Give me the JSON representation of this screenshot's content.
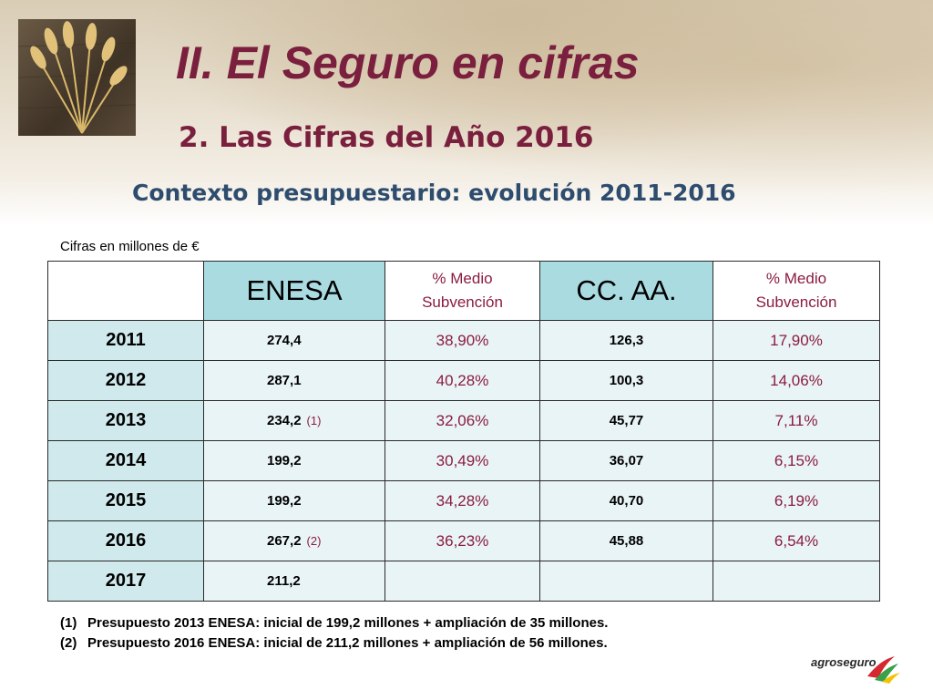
{
  "header": {
    "title": "II. El Seguro en cifras",
    "subtitle": "2.  Las Cifras del Año 2016",
    "context_title": "Contexto presupuestario: evolución 2011-2016"
  },
  "units_note": "Cifras en millones de €",
  "table": {
    "columns": [
      "",
      "ENESA",
      "% Medio Subvención",
      "CC. AA.",
      "% Medio Subvención"
    ],
    "col_pct_line1": "% Medio",
    "col_pct_line2": "Subvención",
    "rows": [
      {
        "year": "2011",
        "enesa": "274,4",
        "enesa_ref": "",
        "enesa_pct": "38,90%",
        "ccaa": "126,3",
        "ccaa_pct": "17,90%"
      },
      {
        "year": "2012",
        "enesa": "287,1",
        "enesa_ref": "",
        "enesa_pct": "40,28%",
        "ccaa": "100,3",
        "ccaa_pct": "14,06%"
      },
      {
        "year": "2013",
        "enesa": "234,2",
        "enesa_ref": "(1)",
        "enesa_pct": "32,06%",
        "ccaa": "45,77",
        "ccaa_pct": "7,11%"
      },
      {
        "year": "2014",
        "enesa": "199,2",
        "enesa_ref": "",
        "enesa_pct": "30,49%",
        "ccaa": "36,07",
        "ccaa_pct": "6,15%"
      },
      {
        "year": "2015",
        "enesa": "199,2",
        "enesa_ref": "",
        "enesa_pct": "34,28%",
        "ccaa": "40,70",
        "ccaa_pct": "6,19%"
      },
      {
        "year": "2016",
        "enesa": "267,2",
        "enesa_ref": "(2)",
        "enesa_pct": "36,23%",
        "ccaa": "45,88",
        "ccaa_pct": "6,54%"
      },
      {
        "year": "2017",
        "enesa": "211,2",
        "enesa_ref": "",
        "enesa_pct": "",
        "ccaa": "",
        "ccaa_pct": ""
      }
    ]
  },
  "footnotes": [
    {
      "num": "(1)",
      "text": "Presupuesto 2013 ENESA: inicial de 199,2 millones + ampliación de 35 millones."
    },
    {
      "num": "(2)",
      "text": "Presupuesto 2016 ENESA: inicial de 211,2 millones + ampliación de 56 millones."
    }
  ],
  "logo": {
    "text": "agroseguro",
    "colors": {
      "red": "#d6282e",
      "green": "#3aa14a",
      "yellow": "#f2c300"
    }
  },
  "colors": {
    "title": "#7a1f3d",
    "context": "#2e4d6e",
    "header_cell": "#a9dbe1",
    "year_cell": "#cfe9ec",
    "value_cell": "#e9f4f6",
    "pct_text": "#8a1c3f"
  }
}
